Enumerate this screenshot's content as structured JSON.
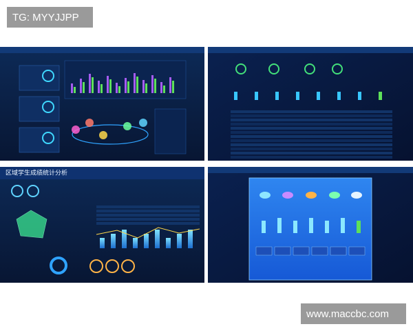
{
  "watermarks": {
    "top": "TG: MYYJJPP",
    "bottom": "www.maccbc.com"
  },
  "panels": [
    {
      "title": "区域学生成绩统计分析"
    }
  ]
}
